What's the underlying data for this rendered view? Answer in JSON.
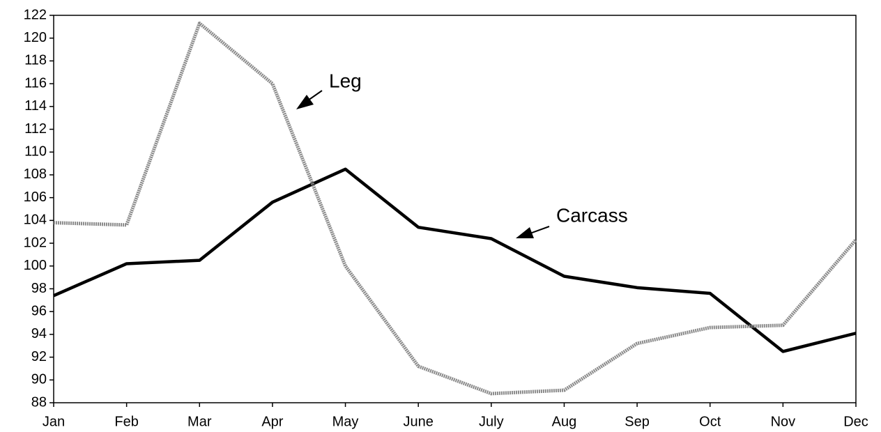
{
  "chart_data": {
    "type": "line",
    "categories": [
      "Jan",
      "Feb",
      "Mar",
      "Apr",
      "May",
      "June",
      "July",
      "Aug",
      "Sep",
      "Oct",
      "Nov",
      "Dec"
    ],
    "series": [
      {
        "name": "Carcass",
        "color": "#000000",
        "values": [
          97.4,
          100.2,
          100.5,
          105.6,
          108.5,
          103.4,
          102.4,
          99.1,
          98.1,
          97.6,
          92.5,
          94.1
        ]
      },
      {
        "name": "Leg",
        "color": "#8a8a8a",
        "values": [
          103.8,
          103.6,
          121.3,
          116,
          100,
          91.2,
          88.8,
          89.1,
          93.2,
          94.6,
          94.8,
          102.3
        ]
      }
    ],
    "ylim": [
      88,
      122
    ],
    "yticks": [
      88,
      90,
      92,
      94,
      96,
      98,
      100,
      102,
      104,
      106,
      108,
      110,
      112,
      114,
      116,
      118,
      120,
      122
    ]
  }
}
